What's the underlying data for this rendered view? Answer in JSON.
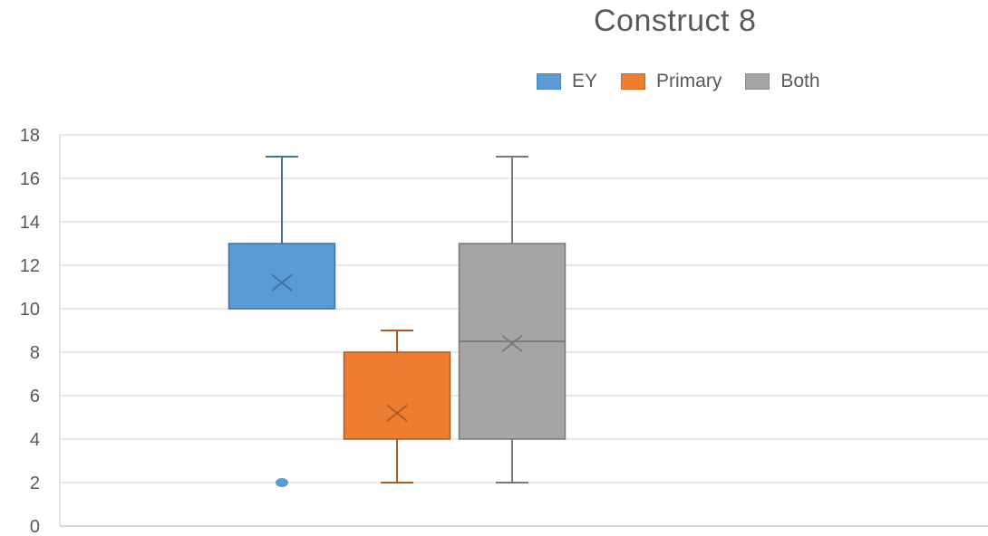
{
  "chart_data": {
    "type": "box",
    "title": "Construct 8",
    "xlabel": "",
    "ylabel": "",
    "ylim": [
      0,
      18
    ],
    "yticks": [
      0,
      2,
      4,
      6,
      8,
      10,
      12,
      14,
      16,
      18
    ],
    "grid": true,
    "legend_position": "top",
    "series": [
      {
        "name": "EY",
        "color": "#5b9bd5",
        "min": 10,
        "q1": 10,
        "median": 10,
        "q3": 13,
        "max": 17,
        "mean": 11.2,
        "outliers": [
          2
        ]
      },
      {
        "name": "Primary",
        "color": "#ed7d31",
        "min": 2,
        "q1": 4,
        "median": 4,
        "q3": 8,
        "max": 9,
        "mean": 5.2,
        "outliers": []
      },
      {
        "name": "Both",
        "color": "#a5a5a5",
        "min": 2,
        "q1": 4,
        "median": 8.5,
        "q3": 13,
        "max": 17,
        "mean": 8.4,
        "outliers": []
      }
    ]
  }
}
